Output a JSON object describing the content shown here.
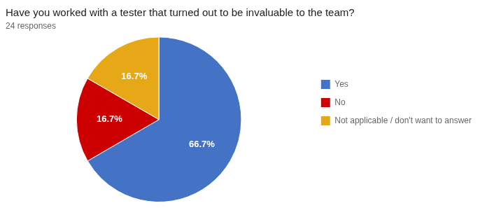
{
  "chart_data": {
    "type": "pie",
    "title": "Have you worked with a tester that turned out to be invaluable to the team?",
    "subtitle": "24 responses",
    "categories": [
      "Yes",
      "No",
      "Not applicable / don't want to answer"
    ],
    "values": [
      66.7,
      16.7,
      16.7
    ],
    "value_labels": [
      "66.7%",
      "16.7%",
      "16.7%"
    ],
    "colors": [
      "#4472c4",
      "#cc0000",
      "#e6a817"
    ],
    "data_labels": true,
    "legend": "right"
  }
}
